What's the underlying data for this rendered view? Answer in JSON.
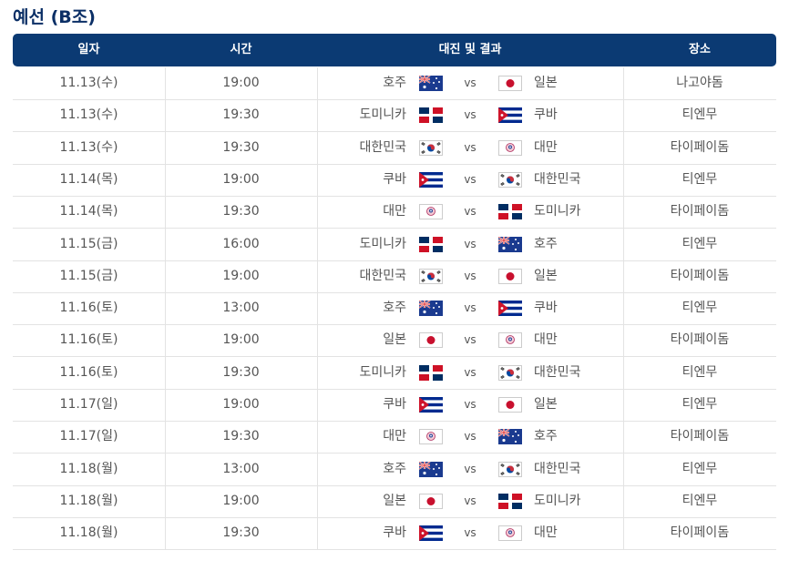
{
  "title": "예선 (B조)",
  "table": {
    "header": [
      "일자",
      "시간",
      "대진 및 결과",
      "장소"
    ],
    "rows": [
      [
        "11.13(수)",
        "19:00",
        "호주",
        "vs",
        "일본",
        "나고야돔"
      ],
      [
        "11.13(수)",
        "19:30",
        "도미니카",
        "vs",
        "쿠바",
        "티엔무"
      ],
      [
        "11.13(수)",
        "19:30",
        "대한민국",
        "vs",
        "대만",
        "타이페이돔"
      ],
      [
        "11.14(목)",
        "19:00",
        "쿠바",
        "vs",
        "대한민국",
        "티엔무"
      ],
      [
        "11.14(목)",
        "19:30",
        "대만",
        "vs",
        "도미니카",
        "타이페이돔"
      ],
      [
        "11.15(금)",
        "16:00",
        "도미니카",
        "vs",
        "호주",
        "티엔무"
      ],
      [
        "11.15(금)",
        "19:00",
        "대한민국",
        "vs",
        "일본",
        "타이페이돔"
      ],
      [
        "11.16(토)",
        "13:00",
        "호주",
        "vs",
        "쿠바",
        "티엔무"
      ],
      [
        "11.16(토)",
        "19:00",
        "일본",
        "vs",
        "대만",
        "타이페이돔"
      ],
      [
        "11.16(토)",
        "19:30",
        "도미니카",
        "vs",
        "대한민국",
        "티엔무"
      ],
      [
        "11.17(일)",
        "19:00",
        "쿠바",
        "vs",
        "일본",
        "티엔무"
      ],
      [
        "11.17(일)",
        "19:30",
        "대만",
        "vs",
        "호주",
        "타이페이돔"
      ],
      [
        "11.18(월)",
        "13:00",
        "호주",
        "vs",
        "대한민국",
        "티엔무"
      ],
      [
        "11.18(월)",
        "19:00",
        "일본",
        "vs",
        "도미니카",
        "티엔무"
      ],
      [
        "11.18(월)",
        "19:30",
        "쿠바",
        "vs",
        "대만",
        "타이페이돔"
      ]
    ]
  }
}
